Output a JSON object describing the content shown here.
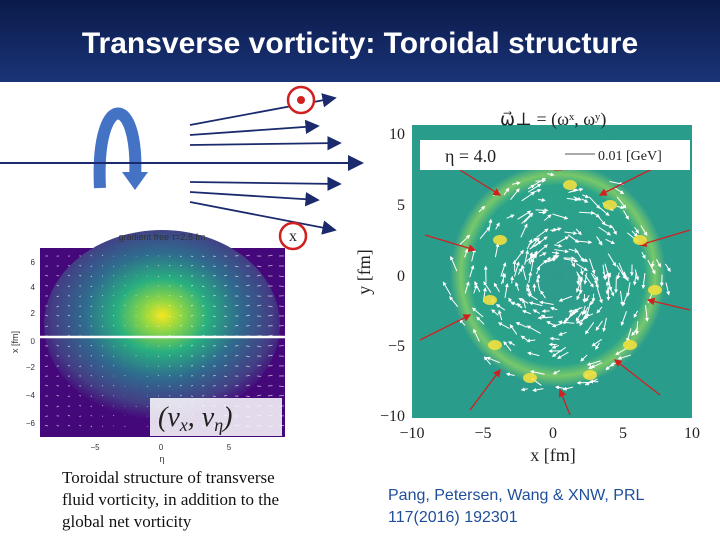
{
  "title": "Transverse vorticity: Toroidal structure",
  "left_plot": {
    "title": "gradient free τ=2.8 fm",
    "y_label": "x [fm]",
    "x_label": "η",
    "y_ticks": [
      "6",
      "4",
      "2",
      "0",
      "−2",
      "−4",
      "−6"
    ],
    "x_ticks": [
      "−5",
      "0",
      "5"
    ],
    "overlay": {
      "open": "(v",
      "sub1": "x",
      "mid": ", v",
      "sub2": "η",
      "close": ")"
    }
  },
  "marker_out": "x",
  "right_plot": {
    "formula": "ω⃗⊥ = (ωˣ, ωʸ)",
    "eta": "η = 4.0",
    "scale": "0.01 [GeV]",
    "y_label": "y [fm]",
    "x_label": "x [fm]",
    "y_ticks": [
      "10",
      "5",
      "0",
      "−5",
      "−10"
    ],
    "x_ticks": [
      "−10",
      "−5",
      "0",
      "5",
      "10"
    ]
  },
  "caption_left": [
    "Toroidal structure of transverse",
    "fluid vorticity, in addition to the",
    "global net vorticity"
  ],
  "citation": [
    "Pang, Petersen, Wang & XNW, PRL",
    "117(2016) 192301"
  ]
}
